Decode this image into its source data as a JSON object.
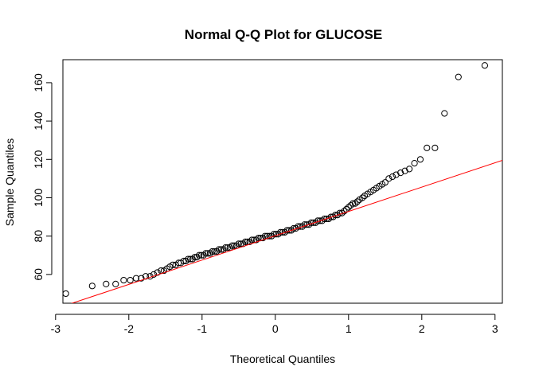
{
  "chart_data": {
    "type": "scatter",
    "title": "Normal Q-Q Plot for GLUCOSE",
    "xlabel": "Theoretical Quantiles",
    "ylabel": "Sample Quantiles",
    "xlim": [
      -2.9,
      3.1
    ],
    "ylim": [
      45,
      172
    ],
    "xticks": [
      -3,
      -2,
      -1,
      0,
      1,
      2,
      3
    ],
    "yticks": [
      60,
      80,
      100,
      120,
      140,
      160
    ],
    "grid": false,
    "colors": {
      "points": "#000000",
      "reference_line": "#ff0000",
      "frame": "#000000"
    },
    "reference_line": {
      "x": [
        -2.9,
        3.1
      ],
      "y": [
        43.4,
        119.5
      ]
    },
    "x": [
      -2.86,
      -2.5,
      -2.31,
      -2.18,
      -2.07,
      -1.98,
      -1.9,
      -1.83,
      -1.77,
      -1.71,
      -1.66,
      -1.61,
      -1.56,
      -1.52,
      -1.48,
      -1.44,
      -1.4,
      -1.36,
      -1.32,
      -1.29,
      -1.25,
      -1.22,
      -1.19,
      -1.16,
      -1.13,
      -1.1,
      -1.07,
      -1.04,
      -1.01,
      -0.98,
      -0.95,
      -0.92,
      -0.89,
      -0.86,
      -0.83,
      -0.8,
      -0.77,
      -0.74,
      -0.71,
      -0.68,
      -0.65,
      -0.62,
      -0.59,
      -0.56,
      -0.53,
      -0.5,
      -0.47,
      -0.44,
      -0.41,
      -0.38,
      -0.35,
      -0.32,
      -0.29,
      -0.26,
      -0.23,
      -0.2,
      -0.17,
      -0.14,
      -0.11,
      -0.08,
      -0.05,
      -0.02,
      0.01,
      0.04,
      0.07,
      0.1,
      0.13,
      0.16,
      0.19,
      0.22,
      0.25,
      0.28,
      0.31,
      0.34,
      0.37,
      0.4,
      0.43,
      0.46,
      0.49,
      0.52,
      0.55,
      0.58,
      0.61,
      0.64,
      0.67,
      0.7,
      0.73,
      0.76,
      0.79,
      0.82,
      0.85,
      0.88,
      0.91,
      0.94,
      0.97,
      1.0,
      1.03,
      1.06,
      1.09,
      1.12,
      1.15,
      1.19,
      1.22,
      1.26,
      1.3,
      1.34,
      1.38,
      1.42,
      1.46,
      1.5,
      1.55,
      1.6,
      1.65,
      1.71,
      1.77,
      1.83,
      1.9,
      1.98,
      2.07,
      2.18,
      2.31,
      2.5,
      2.86
    ],
    "y": [
      50,
      54,
      55,
      55,
      57,
      57,
      58,
      58,
      59,
      59,
      60,
      61,
      62,
      62,
      63,
      64,
      65,
      65,
      66,
      66,
      67,
      67,
      68,
      68,
      68,
      69,
      69,
      70,
      70,
      70,
      71,
      71,
      71,
      72,
      72,
      72,
      73,
      73,
      73,
      74,
      74,
      74,
      75,
      75,
      75,
      76,
      76,
      76,
      77,
      77,
      77,
      78,
      78,
      78,
      79,
      79,
      79,
      80,
      80,
      80,
      80,
      81,
      81,
      81,
      82,
      82,
      82,
      83,
      83,
      83,
      84,
      84,
      85,
      85,
      85,
      86,
      86,
      86,
      87,
      87,
      87,
      88,
      88,
      88,
      89,
      89,
      89,
      90,
      90,
      91,
      91,
      92,
      92,
      93,
      94,
      95,
      96,
      97,
      97,
      98,
      99,
      100,
      101,
      102,
      103,
      104,
      105,
      106,
      107,
      108,
      110,
      111,
      112,
      113,
      114,
      115,
      118,
      120,
      126,
      126,
      144,
      163,
      169
    ]
  }
}
